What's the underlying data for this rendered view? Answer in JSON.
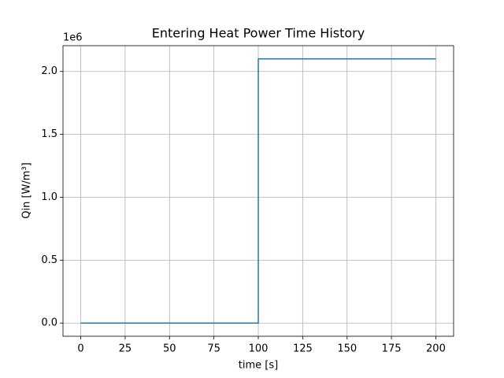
{
  "chart_data": {
    "type": "line",
    "title": "Entering Heat Power Time History",
    "xlabel": "time [s]",
    "ylabel": "Qin [W/m³]",
    "y_offset_label": "1e6",
    "x": [
      0,
      100,
      100,
      200
    ],
    "series": [
      {
        "color": "#1f77b4",
        "values": [
          0,
          0,
          2100000,
          2100000
        ]
      }
    ],
    "xlim": [
      -10,
      210
    ],
    "xticks": [
      0,
      25,
      50,
      75,
      100,
      125,
      150,
      175,
      200
    ],
    "ylim": [
      -105000,
      2205000
    ],
    "yticks": [
      {
        "value": 0,
        "label": "0.0"
      },
      {
        "value": 500000,
        "label": "0.5"
      },
      {
        "value": 1000000,
        "label": "1.0"
      },
      {
        "value": 1500000,
        "label": "1.5"
      },
      {
        "value": 2000000,
        "label": "2.0"
      }
    ],
    "grid": true
  }
}
